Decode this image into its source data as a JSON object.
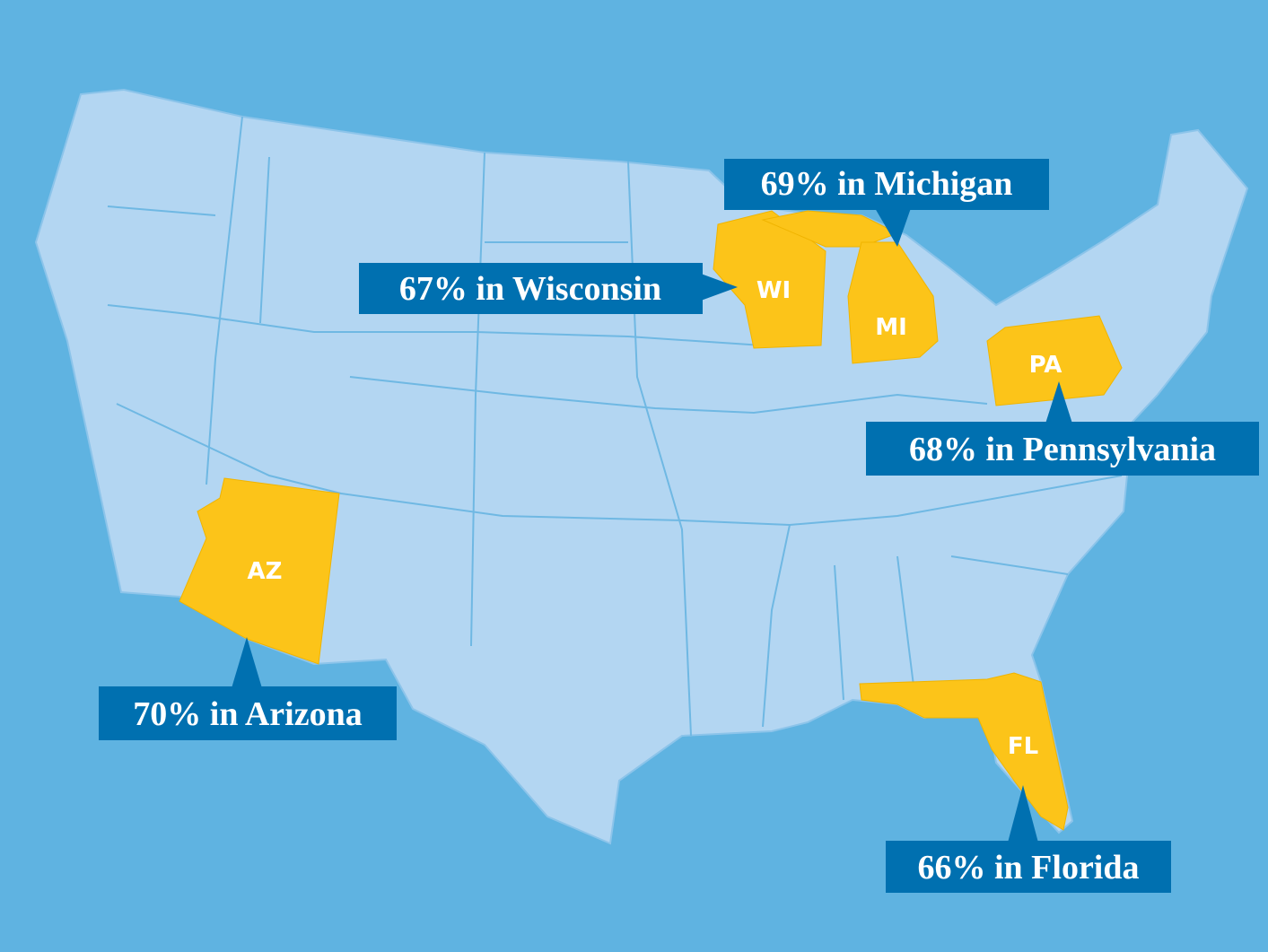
{
  "states": [
    {
      "code": "MI",
      "callout": "69% in Michigan"
    },
    {
      "code": "WI",
      "callout": "67% in Wisconsin"
    },
    {
      "code": "PA",
      "callout": "68% in Pennsylvania"
    },
    {
      "code": "AZ",
      "callout": "70% in Arizona"
    },
    {
      "code": "FL",
      "callout": "66% in Florida"
    }
  ]
}
